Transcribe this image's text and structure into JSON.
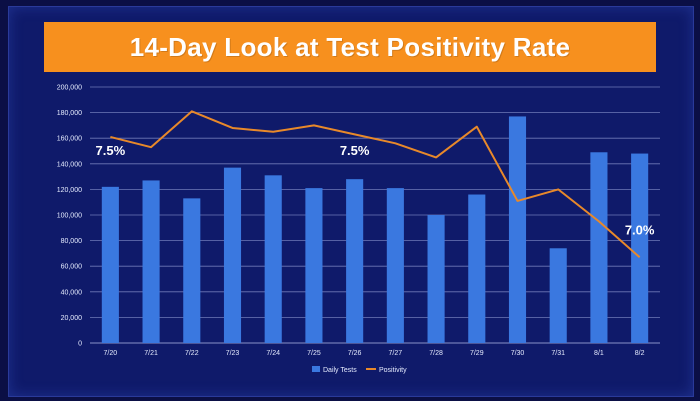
{
  "title": "14-Day Look at Test Positivity Rate",
  "colors": {
    "background": "#0f1a6a",
    "title_bar": "#f7901e",
    "bar": "#3a78e0",
    "line": "#e8892a",
    "grid": "#6f79b8"
  },
  "chart_data": {
    "type": "bar",
    "categories": [
      "7/20",
      "7/21",
      "7/22",
      "7/23",
      "7/24",
      "7/25",
      "7/26",
      "7/27",
      "7/28",
      "7/29",
      "7/30",
      "7/31",
      "8/1",
      "8/2"
    ],
    "ylim": [
      0,
      200000
    ],
    "yticks": [
      "0",
      "20,000",
      "40,000",
      "60,000",
      "80,000",
      "100,000",
      "120,000",
      "140,000",
      "160,000",
      "180,000",
      "200,000"
    ],
    "grid": true,
    "legend_position": "bottom",
    "series": [
      {
        "name": "Daily Tests",
        "type": "bar",
        "values": [
          122000,
          127000,
          113000,
          137000,
          131000,
          121000,
          128000,
          121000,
          100000,
          116000,
          177000,
          74000,
          149000,
          148000
        ]
      },
      {
        "name": "Positivity",
        "type": "line",
        "values": [
          161000,
          153000,
          181000,
          168000,
          165000,
          170000,
          163000,
          156000,
          145000,
          169000,
          111000,
          120000,
          95000,
          67000
        ]
      }
    ],
    "annotations": [
      {
        "text": "7.5%",
        "category": "7/20",
        "y": 150000
      },
      {
        "text": "7.5%",
        "category": "7/26",
        "y": 150000
      },
      {
        "text": "7.0%",
        "category": "8/2",
        "y": 88000
      }
    ]
  }
}
